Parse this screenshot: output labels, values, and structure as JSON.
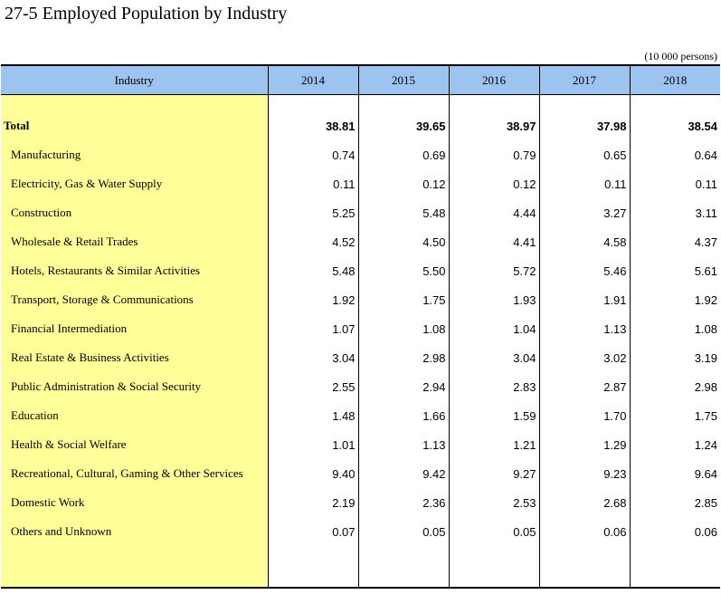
{
  "title": "27-5  Employed Population by Industry",
  "unit": "(10 000 persons)",
  "header": {
    "industry": "Industry",
    "years": [
      "2014",
      "2015",
      "2016",
      "2017",
      "2018"
    ]
  },
  "total": {
    "label": "Total",
    "values": [
      "38.81",
      "39.65",
      "38.97",
      "37.98",
      "38.54"
    ]
  },
  "rows": [
    {
      "label": "Manufacturing",
      "values": [
        "0.74",
        "0.69",
        "0.79",
        "0.65",
        "0.64"
      ]
    },
    {
      "label": "Electricity, Gas & Water Supply",
      "values": [
        "0.11",
        "0.12",
        "0.12",
        "0.11",
        "0.11"
      ]
    },
    {
      "label": "Construction",
      "values": [
        "5.25",
        "5.48",
        "4.44",
        "3.27",
        "3.11"
      ]
    },
    {
      "label": "Wholesale & Retail Trades",
      "values": [
        "4.52",
        "4.50",
        "4.41",
        "4.58",
        "4.37"
      ]
    },
    {
      "label": "Hotels, Restaurants & Similar Activities",
      "values": [
        "5.48",
        "5.50",
        "5.72",
        "5.46",
        "5.61"
      ]
    },
    {
      "label": "Transport, Storage & Communications",
      "values": [
        "1.92",
        "1.75",
        "1.93",
        "1.91",
        "1.92"
      ]
    },
    {
      "label": "Financial Intermediation",
      "values": [
        "1.07",
        "1.08",
        "1.04",
        "1.13",
        "1.08"
      ]
    },
    {
      "label": "Real Estate & Business Activities",
      "values": [
        "3.04",
        "2.98",
        "3.04",
        "3.02",
        "3.19"
      ]
    },
    {
      "label": "Public Administration & Social Security",
      "values": [
        "2.55",
        "2.94",
        "2.83",
        "2.87",
        "2.98"
      ]
    },
    {
      "label": "Education",
      "values": [
        "1.48",
        "1.66",
        "1.59",
        "1.70",
        "1.75"
      ]
    },
    {
      "label": "Health & Social Welfare",
      "values": [
        "1.01",
        "1.13",
        "1.21",
        "1.29",
        "1.24"
      ]
    },
    {
      "label": "Recreational, Cultural, Gaming & Other Services",
      "values": [
        "9.40",
        "9.42",
        "9.27",
        "9.23",
        "9.64"
      ]
    },
    {
      "label": "Domestic Work",
      "values": [
        "2.19",
        "2.36",
        "2.53",
        "2.68",
        "2.85"
      ]
    },
    {
      "label": "Others and Unknown",
      "values": [
        "0.07",
        "0.05",
        "0.05",
        "0.06",
        "0.06"
      ]
    }
  ]
}
